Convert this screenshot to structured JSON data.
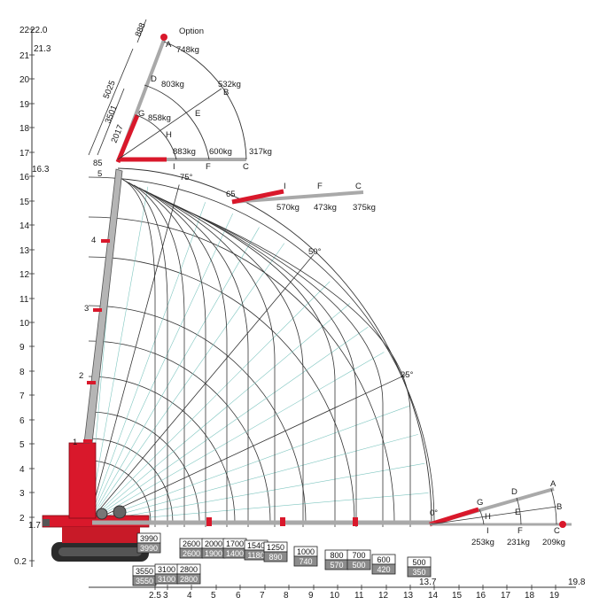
{
  "y_axis_ticks": [
    "22",
    "21",
    "20",
    "19",
    "18",
    "17",
    "16",
    "15",
    "14",
    "13",
    "12",
    "11",
    "10",
    "9",
    "8",
    "7",
    "6",
    "5",
    "4",
    "3",
    "2",
    "0.2"
  ],
  "y_axis_extra": {
    "top": "22.0",
    "jib_top": "21.3",
    "jib_base": "16.3",
    "low": "1.7"
  },
  "x_axis_ticks": [
    "2.5",
    "3",
    "4",
    "5",
    "6",
    "7",
    "8",
    "9",
    "10",
    "11",
    "12",
    "13",
    "14",
    "15",
    "16",
    "17",
    "18",
    "19"
  ],
  "x_axis_extra": {
    "reach_main": "13.7",
    "reach_max": "19.8"
  },
  "angles": {
    "a75": "75°",
    "a50": "50°",
    "a25": "25°",
    "a0": "0°",
    "a65": "65"
  },
  "boom_sections": [
    "1",
    "2",
    "3",
    "4",
    "5"
  ],
  "jib": {
    "option_label": "Option",
    "dims": {
      "d1": "888",
      "d2": "5025",
      "d3": "3501",
      "d4": "2017",
      "d5": "85"
    },
    "top_points": [
      {
        "id": "A",
        "load": "748kg"
      },
      {
        "id": "D",
        "load": "803kg"
      },
      {
        "id": "G",
        "load": "858kg"
      },
      {
        "id": "B",
        "load": "532kg"
      },
      {
        "id": "E",
        "load": ""
      },
      {
        "id": "H",
        "load": ""
      }
    ],
    "horizontal": [
      {
        "id": "I",
        "load": "883kg"
      },
      {
        "id": "F",
        "load": "600kg"
      },
      {
        "id": "C",
        "load": "317kg"
      }
    ],
    "at_65": [
      {
        "id": "I",
        "load": "570kg"
      },
      {
        "id": "F",
        "load": "473kg"
      },
      {
        "id": "C",
        "load": "375kg"
      }
    ],
    "at_0": [
      {
        "id": "A",
        "load": ""
      },
      {
        "id": "D",
        "load": ""
      },
      {
        "id": "G",
        "load": ""
      },
      {
        "id": "B",
        "load": ""
      },
      {
        "id": "E",
        "load": ""
      },
      {
        "id": "H",
        "load": ""
      },
      {
        "id": "I",
        "load": "253kg"
      },
      {
        "id": "F",
        "load": "231kg"
      },
      {
        "id": "C",
        "load": "209kg"
      }
    ]
  },
  "capacity_table": [
    {
      "upper": "3990",
      "lower": "3990"
    },
    {
      "upper": "3550",
      "lower": "3550"
    },
    {
      "upper": "3100",
      "lower": "3100"
    },
    {
      "upper": "2800",
      "lower": "2800"
    },
    {
      "upper": "2600",
      "lower": "2600"
    },
    {
      "upper": "2000",
      "lower": "1900"
    },
    {
      "upper": "1700",
      "lower": "1400"
    },
    {
      "upper": "1540",
      "lower": "1180"
    },
    {
      "upper": "1250",
      "lower": "890"
    },
    {
      "upper": "1000",
      "lower": "740"
    },
    {
      "upper": "800",
      "lower": "570"
    },
    {
      "upper": "700",
      "lower": "500"
    },
    {
      "upper": "600",
      "lower": "420"
    },
    {
      "upper": "500",
      "lower": "350"
    }
  ],
  "colors": {
    "crane_red": "#d9182b",
    "boom_grey": "#a9a9a9",
    "boxes_grey": "#8c8c8c"
  }
}
